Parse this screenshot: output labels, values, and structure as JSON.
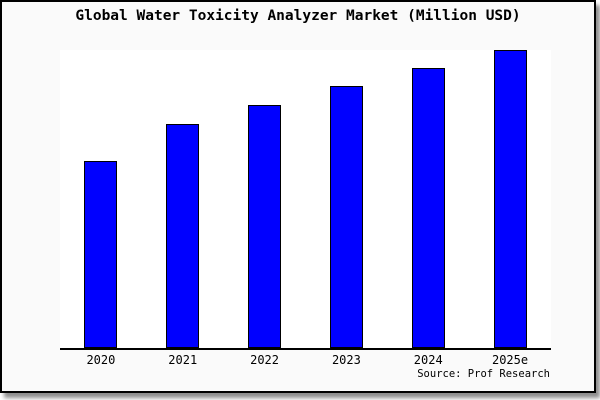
{
  "window": {
    "background": "#fafafa",
    "border_color": "#000000",
    "shadow_color": "#737373"
  },
  "chart_data": {
    "type": "bar",
    "title": "Global Water Toxicity Analyzer Market (Million USD)",
    "categories": [
      "2020",
      "2021",
      "2022",
      "2023",
      "2024",
      "2025e"
    ],
    "values": [
      62.7,
      75.0,
      81.3,
      87.7,
      93.7,
      100.0
    ],
    "values_note": "no y-axis or data labels shown; values estimated from bar heights relative to tallest bar (2025e = 100)",
    "xlabel": "",
    "ylabel": "",
    "ylim": [
      0,
      100
    ],
    "grid": false,
    "legend": null,
    "bar_fill": "#0000ff",
    "bar_border": "#000000",
    "plot_background": "#ffffff",
    "axis_color": "#000000"
  },
  "source": {
    "label": "Source: Prof Research"
  }
}
